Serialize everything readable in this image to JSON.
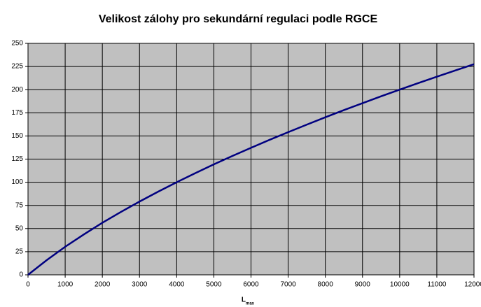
{
  "chart_data": {
    "type": "line",
    "title": "Velikost zálohy pro sekundární regulaci podle RGCE",
    "x_label": {
      "main": "L",
      "sub": "max"
    },
    "x": [
      0,
      500,
      1000,
      1500,
      2000,
      2500,
      3000,
      3500,
      4000,
      4500,
      5000,
      5500,
      6000,
      6500,
      7000,
      7500,
      8000,
      8500,
      9000,
      9500,
      10000,
      10500,
      11000,
      11500,
      12000
    ],
    "series": [
      {
        "color": "#000080",
        "values": [
          0,
          15.8,
          30.3,
          43.6,
          56.2,
          67.9,
          79.1,
          89.8,
          100,
          109.8,
          119.3,
          128.4,
          137.2,
          145.8,
          154.1,
          162.2,
          170.2,
          177.9,
          185.4,
          192.8,
          200,
          207.1,
          214.0,
          220.8,
          227.5
        ]
      }
    ],
    "xlim": [
      0,
      12000
    ],
    "xticks": [
      0,
      1000,
      2000,
      3000,
      4000,
      5000,
      6000,
      7000,
      8000,
      9000,
      10000,
      11000,
      12000
    ],
    "ylim": [
      0,
      250
    ],
    "yticks": [
      0,
      25,
      50,
      75,
      100,
      125,
      150,
      175,
      200,
      225,
      250
    ],
    "grid": true,
    "plot_background": "#c0c0c0"
  }
}
